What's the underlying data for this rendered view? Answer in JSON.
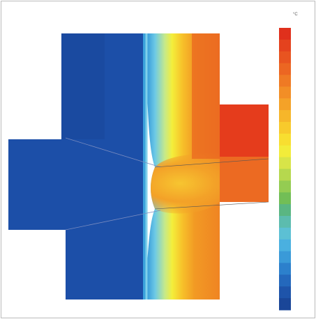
{
  "legend": {
    "unit": "°C"
  }
}
